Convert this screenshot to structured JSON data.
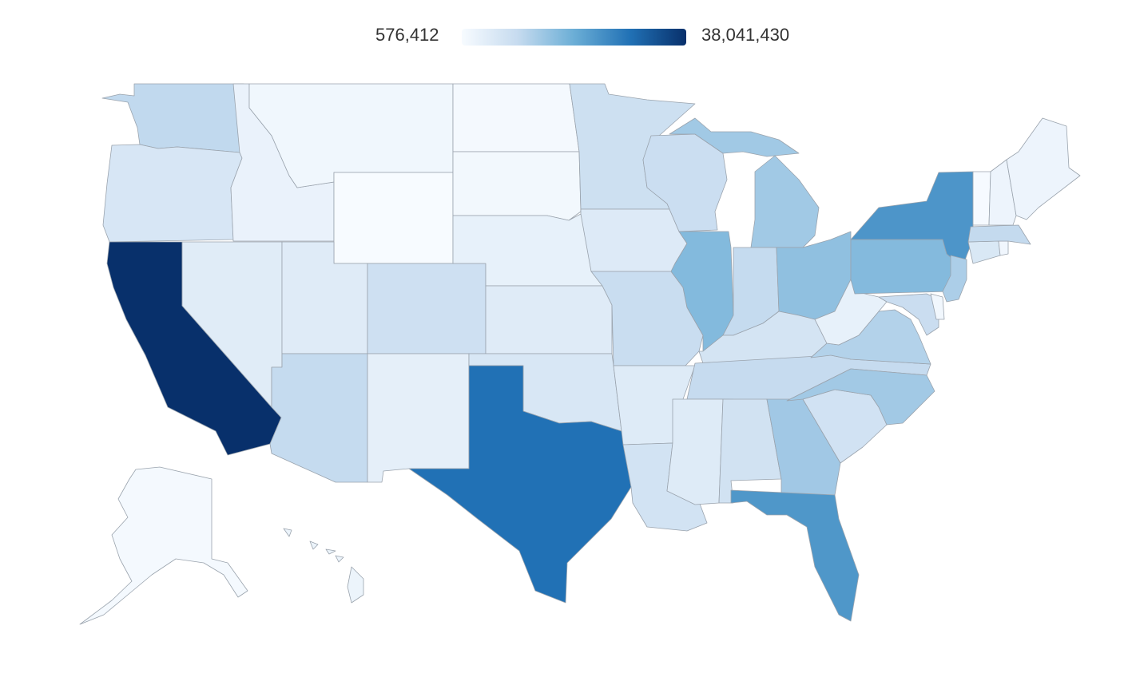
{
  "legend": {
    "min_label": "576,412",
    "max_label": "38,041,430",
    "min_value": 576412,
    "max_value": 38041430,
    "color_start": "#f7fbff",
    "color_end": "#08306b",
    "scale_colors": [
      "#f7fbff",
      "#c6dbef",
      "#6baed6",
      "#2171b5",
      "#08306b"
    ]
  },
  "map_data": {
    "type": "choropleth",
    "metric": "population",
    "states": [
      {
        "id": "CA",
        "value": 38041430
      },
      {
        "id": "TX",
        "value": 26059203
      },
      {
        "id": "FL",
        "value": 19317568
      },
      {
        "id": "NY",
        "value": 19570261
      },
      {
        "id": "IL",
        "value": 12875255
      },
      {
        "id": "PA",
        "value": 12763536
      },
      {
        "id": "OH",
        "value": 11544225
      },
      {
        "id": "GA",
        "value": 9919945
      },
      {
        "id": "MI",
        "value": 9883360
      },
      {
        "id": "NC",
        "value": 9752073
      },
      {
        "id": "NJ",
        "value": 8864590
      },
      {
        "id": "VA",
        "value": 8185867
      },
      {
        "id": "WA",
        "value": 6897012
      },
      {
        "id": "MA",
        "value": 6646144
      },
      {
        "id": "AZ",
        "value": 6553255
      },
      {
        "id": "IN",
        "value": 6537334
      },
      {
        "id": "TN",
        "value": 6456243
      },
      {
        "id": "MO",
        "value": 6021988
      },
      {
        "id": "MD",
        "value": 5884563
      },
      {
        "id": "WI",
        "value": 5726398
      },
      {
        "id": "MN",
        "value": 5379139
      },
      {
        "id": "CO",
        "value": 5187582
      },
      {
        "id": "AL",
        "value": 4822023
      },
      {
        "id": "SC",
        "value": 4723723
      },
      {
        "id": "LA",
        "value": 4601893
      },
      {
        "id": "KY",
        "value": 4380415
      },
      {
        "id": "OR",
        "value": 3899353
      },
      {
        "id": "OK",
        "value": 3814820
      },
      {
        "id": "CT",
        "value": 3590347
      },
      {
        "id": "IA",
        "value": 3074186
      },
      {
        "id": "MS",
        "value": 2984926
      },
      {
        "id": "AR",
        "value": 2949131
      },
      {
        "id": "KS",
        "value": 2885905
      },
      {
        "id": "UT",
        "value": 2855287
      },
      {
        "id": "NV",
        "value": 2758931
      },
      {
        "id": "NM",
        "value": 2085538
      },
      {
        "id": "NE",
        "value": 1855525
      },
      {
        "id": "WV",
        "value": 1855413
      },
      {
        "id": "ID",
        "value": 1595728
      },
      {
        "id": "HI",
        "value": 1392313
      },
      {
        "id": "ME",
        "value": 1329192
      },
      {
        "id": "NH",
        "value": 1320718
      },
      {
        "id": "RI",
        "value": 1050292
      },
      {
        "id": "MT",
        "value": 1005141
      },
      {
        "id": "DE",
        "value": 917092
      },
      {
        "id": "SD",
        "value": 833354
      },
      {
        "id": "AK",
        "value": 731449
      },
      {
        "id": "ND",
        "value": 699628
      },
      {
        "id": "VT",
        "value": 626011
      },
      {
        "id": "WY",
        "value": 576412
      }
    ]
  }
}
